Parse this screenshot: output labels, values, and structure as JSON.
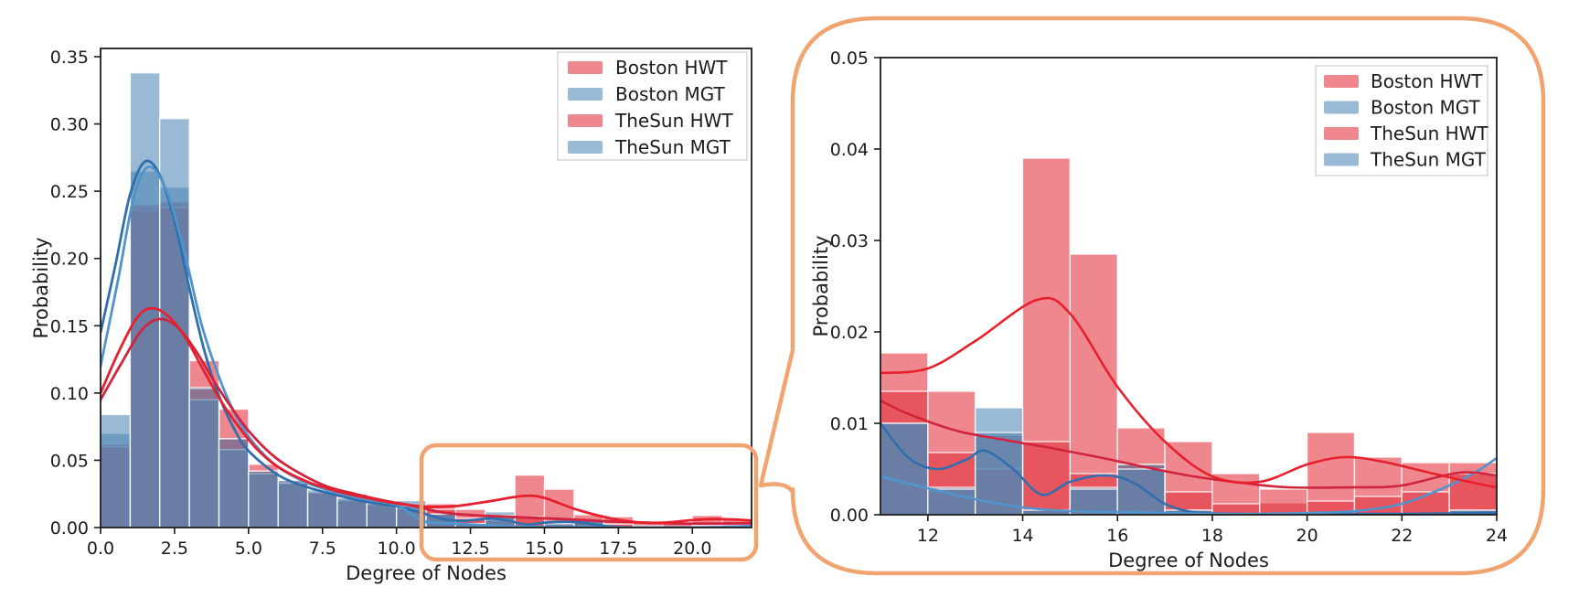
{
  "figure": {
    "background": "#ffffff",
    "description": "Degree distribution histograms with KDE curves; right panel is a magnified view of the boxed tail region of the left panel"
  },
  "colors": {
    "hwt_bar": "#e2323c",
    "mgt_bar": "#4f87b5",
    "hwt_bar_composited": "#ee878e",
    "mgt_bar_composited": "#99b9d4",
    "boston_hwt_line": "#e8202e",
    "thesun_hwt_line": "#d0243f",
    "boston_mgt_line": "#2f6fad",
    "thesun_mgt_line": "#4f94cd",
    "annotation_orange": "#f1a46f",
    "axis": "#1c1c1c",
    "legend_border": "#cccccc"
  },
  "annotation": {
    "type": "zoom-callout",
    "color": "#f1a46f",
    "highlight_x_range": [
      11,
      22
    ],
    "highlight_y_range": [
      0,
      0.06
    ],
    "description": "rounded rectangle over tail of left histogram, connected by a callout wedge to the magnified right panel"
  },
  "chart_data": [
    {
      "type": "bar",
      "subtype": "histogram+kde",
      "panel": "left",
      "title": "",
      "xlabel": "Degree of Nodes",
      "ylabel": "Probability",
      "xlim": [
        0,
        22
      ],
      "ylim": [
        0,
        0.35
      ],
      "grid": false,
      "legend_position": "upper right",
      "legend_labels": [
        "Boston HWT",
        "Boston MGT",
        "TheSun HWT",
        "TheSun MGT"
      ],
      "x_ticks": [
        0,
        2.5,
        5,
        7.5,
        10,
        12.5,
        15,
        17.5,
        20
      ],
      "x_tick_labels": [
        "0.0",
        "2.5",
        "5.0",
        "7.5",
        "10.0",
        "12.5",
        "15.0",
        "17.5",
        "20.0"
      ],
      "y_ticks": [
        0,
        0.05,
        0.1,
        0.15,
        0.2,
        0.25,
        0.3,
        0.35
      ],
      "y_tick_labels": [
        "0.00",
        "0.05",
        "0.10",
        "0.15",
        "0.20",
        "0.25",
        "0.30",
        "0.35"
      ],
      "bin_start": 0,
      "bin_width": 1,
      "series": [
        {
          "name": "Boston HWT",
          "kind": "hwt",
          "values": [
            0.062,
            0.235,
            0.242,
            0.124,
            0.088,
            0.047,
            0.035,
            0.027,
            0.025,
            0.018,
            0.016,
            0.0177,
            0.0135,
            0.0087,
            0.039,
            0.0285,
            0.0095,
            0.008,
            0.0045,
            0.0013,
            0.009,
            0.0063
          ],
          "kde": [
            [
              0,
              0.1
            ],
            [
              0.6,
              0.13
            ],
            [
              1.2,
              0.155
            ],
            [
              1.7,
              0.163
            ],
            [
              2.3,
              0.157
            ],
            [
              2.9,
              0.14
            ],
            [
              3.5,
              0.116
            ],
            [
              4.1,
              0.093
            ],
            [
              4.7,
              0.074
            ],
            [
              5.3,
              0.058
            ],
            [
              6,
              0.045
            ],
            [
              7,
              0.034
            ],
            [
              8,
              0.027
            ],
            [
              9,
              0.022
            ],
            [
              10,
              0.018
            ],
            [
              11,
              0.0155
            ],
            [
              12,
              0.016
            ],
            [
              13,
              0.019
            ],
            [
              14.3,
              0.0235
            ],
            [
              15,
              0.022
            ],
            [
              16,
              0.014
            ],
            [
              17,
              0.008
            ],
            [
              18,
              0.0042
            ],
            [
              19,
              0.0036
            ],
            [
              20,
              0.0055
            ],
            [
              20.8,
              0.0063
            ],
            [
              21.6,
              0.0058
            ],
            [
              22,
              0.0052
            ]
          ]
        },
        {
          "name": "Boston MGT",
          "kind": "mgt",
          "values": [
            0.07,
            0.265,
            0.253,
            0.095,
            0.058,
            0.04,
            0.033,
            0.026,
            0.021,
            0.018,
            0.016,
            0.01,
            0.003,
            0.0117,
            0.0005,
            0.003,
            0.0055,
            0.0005,
            0,
            0,
            0,
            0
          ],
          "kde": [
            [
              0,
              0.145
            ],
            [
              0.5,
              0.195
            ],
            [
              1,
              0.248
            ],
            [
              1.5,
              0.272
            ],
            [
              2,
              0.262
            ],
            [
              2.5,
              0.228
            ],
            [
              3,
              0.178
            ],
            [
              3.5,
              0.132
            ],
            [
              4,
              0.098
            ],
            [
              4.5,
              0.074
            ],
            [
              5,
              0.057
            ],
            [
              6,
              0.039
            ],
            [
              7,
              0.03
            ],
            [
              8,
              0.024
            ],
            [
              9,
              0.019
            ],
            [
              10,
              0.016
            ],
            [
              10.5,
              0.013
            ],
            [
              11,
              0.01
            ],
            [
              11.6,
              0.0062
            ],
            [
              12.2,
              0.005
            ],
            [
              12.8,
              0.006
            ],
            [
              13.2,
              0.007
            ],
            [
              13.8,
              0.005
            ],
            [
              14.4,
              0.0022
            ],
            [
              15,
              0.0036
            ],
            [
              15.7,
              0.0043
            ],
            [
              16.3,
              0.0036
            ],
            [
              17,
              0.0012
            ],
            [
              17.6,
              0.0003
            ],
            [
              18.5,
              0.0001
            ],
            [
              20,
              0.0001
            ],
            [
              22,
              0.0001
            ]
          ]
        },
        {
          "name": "TheSun HWT",
          "kind": "hwt",
          "values": [
            0.06,
            0.24,
            0.238,
            0.103,
            0.066,
            0.042,
            0.033,
            0.026,
            0.02,
            0.017,
            0.014,
            0.0135,
            0.0068,
            0.005,
            0.008,
            0.0045,
            0.0055,
            0.0025,
            0.0012,
            0.0028,
            0.0015,
            0.002
          ],
          "kde": [
            [
              0,
              0.095
            ],
            [
              0.7,
              0.122
            ],
            [
              1.4,
              0.147
            ],
            [
              2,
              0.155
            ],
            [
              2.6,
              0.149
            ],
            [
              3.2,
              0.132
            ],
            [
              3.8,
              0.11
            ],
            [
              4.4,
              0.09
            ],
            [
              5,
              0.072
            ],
            [
              5.8,
              0.054
            ],
            [
              6.6,
              0.042
            ],
            [
              7.6,
              0.031
            ],
            [
              8.6,
              0.025
            ],
            [
              9.6,
              0.02
            ],
            [
              10.6,
              0.016
            ],
            [
              11.6,
              0.011
            ],
            [
              12.6,
              0.0092
            ],
            [
              13.6,
              0.0082
            ],
            [
              14.6,
              0.0073
            ],
            [
              15.6,
              0.0063
            ],
            [
              16.6,
              0.0052
            ],
            [
              17.6,
              0.0042
            ],
            [
              18.6,
              0.0035
            ],
            [
              19.6,
              0.003
            ],
            [
              21,
              0.003
            ],
            [
              22,
              0.0032
            ]
          ]
        },
        {
          "name": "TheSun MGT",
          "kind": "mgt",
          "values": [
            0.084,
            0.338,
            0.304,
            0.104,
            0.066,
            0.042,
            0.035,
            0.028,
            0.022,
            0.018,
            0.02,
            0.01,
            0.0028,
            0.009,
            0.0005,
            0.0028,
            0.005,
            0.0005,
            0,
            0,
            0,
            0
          ],
          "kde": [
            [
              0,
              0.12
            ],
            [
              0.6,
              0.185
            ],
            [
              1.1,
              0.243
            ],
            [
              1.6,
              0.268
            ],
            [
              2.2,
              0.252
            ],
            [
              2.8,
              0.208
            ],
            [
              3.4,
              0.152
            ],
            [
              4,
              0.112
            ],
            [
              4.6,
              0.082
            ],
            [
              5.2,
              0.062
            ],
            [
              6,
              0.045
            ],
            [
              7,
              0.033
            ],
            [
              8,
              0.026
            ],
            [
              9,
              0.021
            ],
            [
              10,
              0.017
            ],
            [
              10.5,
              0.01
            ],
            [
              11,
              0.0042
            ],
            [
              12,
              0.0029
            ],
            [
              13,
              0.0017
            ],
            [
              14,
              0.0008
            ],
            [
              15,
              0.0004
            ],
            [
              16,
              0.0003
            ],
            [
              17,
              0.0002
            ],
            [
              18,
              0.0001
            ],
            [
              20,
              0.0001
            ],
            [
              21,
              0.0004
            ],
            [
              22,
              0.0012
            ]
          ]
        }
      ]
    },
    {
      "type": "bar",
      "subtype": "histogram+kde",
      "panel": "right (magnified tail)",
      "title": "",
      "xlabel": "Degree of Nodes",
      "ylabel": "Probability",
      "xlim": [
        11,
        24
      ],
      "ylim": [
        0,
        0.05
      ],
      "grid": false,
      "legend_position": "upper right",
      "legend_labels": [
        "Boston HWT",
        "Boston MGT",
        "TheSun HWT",
        "TheSun MGT"
      ],
      "x_ticks": [
        12,
        14,
        16,
        18,
        20,
        22,
        24
      ],
      "x_tick_labels": [
        "12",
        "14",
        "16",
        "18",
        "20",
        "22",
        "24"
      ],
      "y_ticks": [
        0,
        0.01,
        0.02,
        0.03,
        0.04,
        0.05
      ],
      "y_tick_labels": [
        "0.00",
        "0.01",
        "0.02",
        "0.03",
        "0.04",
        "0.05"
      ],
      "bin_start": 11,
      "bin_width": 1,
      "series": [
        {
          "name": "Boston HWT",
          "kind": "hwt",
          "values": [
            0.0177,
            0.0135,
            0.0087,
            0.039,
            0.0285,
            0.0095,
            0.008,
            0.0045,
            0.0013,
            0.009,
            0.0063,
            0.0057,
            0.0057
          ],
          "kde": [
            [
              11,
              0.0155
            ],
            [
              12,
              0.016
            ],
            [
              13,
              0.019
            ],
            [
              14.3,
              0.0235
            ],
            [
              15,
              0.022
            ],
            [
              16,
              0.014
            ],
            [
              17,
              0.008
            ],
            [
              18,
              0.0042
            ],
            [
              19,
              0.0036
            ],
            [
              20,
              0.0055
            ],
            [
              20.8,
              0.0063
            ],
            [
              21.6,
              0.0058
            ],
            [
              22.5,
              0.0047
            ],
            [
              23.5,
              0.0035
            ],
            [
              24,
              0.003
            ]
          ]
        },
        {
          "name": "Boston MGT",
          "kind": "mgt",
          "values": [
            0.01,
            0.003,
            0.0117,
            0.0005,
            0.003,
            0.0055,
            0.0005,
            0,
            0,
            0,
            0,
            0,
            0.0005
          ],
          "kde": [
            [
              11,
              0.01
            ],
            [
              11.6,
              0.0062
            ],
            [
              12.2,
              0.005
            ],
            [
              12.8,
              0.006
            ],
            [
              13.2,
              0.007
            ],
            [
              13.8,
              0.005
            ],
            [
              14.4,
              0.0022
            ],
            [
              15,
              0.0036
            ],
            [
              15.7,
              0.0043
            ],
            [
              16.3,
              0.0036
            ],
            [
              17,
              0.0012
            ],
            [
              17.6,
              0.0003
            ],
            [
              18.5,
              0.0001
            ],
            [
              20,
              0.0001
            ],
            [
              22,
              0.0001
            ],
            [
              24,
              0.0002
            ]
          ]
        },
        {
          "name": "TheSun HWT",
          "kind": "hwt",
          "values": [
            0.0135,
            0.0068,
            0.005,
            0.008,
            0.0045,
            0.0055,
            0.0025,
            0.0012,
            0.0028,
            0.0015,
            0.002,
            0.0025,
            0.0045
          ],
          "kde": [
            [
              11,
              0.0125
            ],
            [
              11.6,
              0.011
            ],
            [
              12.6,
              0.0092
            ],
            [
              13.6,
              0.0082
            ],
            [
              14.6,
              0.0073
            ],
            [
              15.6,
              0.0063
            ],
            [
              16.6,
              0.0052
            ],
            [
              17.6,
              0.0042
            ],
            [
              18.6,
              0.0035
            ],
            [
              19.6,
              0.003
            ],
            [
              21,
              0.003
            ],
            [
              22,
              0.0032
            ],
            [
              23.2,
              0.0046
            ],
            [
              24,
              0.0043
            ]
          ]
        },
        {
          "name": "TheSun MGT",
          "kind": "mgt",
          "values": [
            0.01,
            0.0028,
            0.009,
            0.0005,
            0.0028,
            0.005,
            0.0005,
            0,
            0,
            0,
            0,
            0,
            0.0005
          ],
          "kde": [
            [
              11,
              0.0042
            ],
            [
              12,
              0.0029
            ],
            [
              13,
              0.0017
            ],
            [
              14,
              0.0008
            ],
            [
              15,
              0.0004
            ],
            [
              16,
              0.0003
            ],
            [
              17,
              0.0002
            ],
            [
              18,
              0.0001
            ],
            [
              19,
              0.0001
            ],
            [
              20,
              0.0002
            ],
            [
              21,
              0.0004
            ],
            [
              22,
              0.0012
            ],
            [
              23,
              0.0032
            ],
            [
              23.6,
              0.0048
            ],
            [
              24,
              0.0062
            ]
          ]
        }
      ]
    }
  ]
}
